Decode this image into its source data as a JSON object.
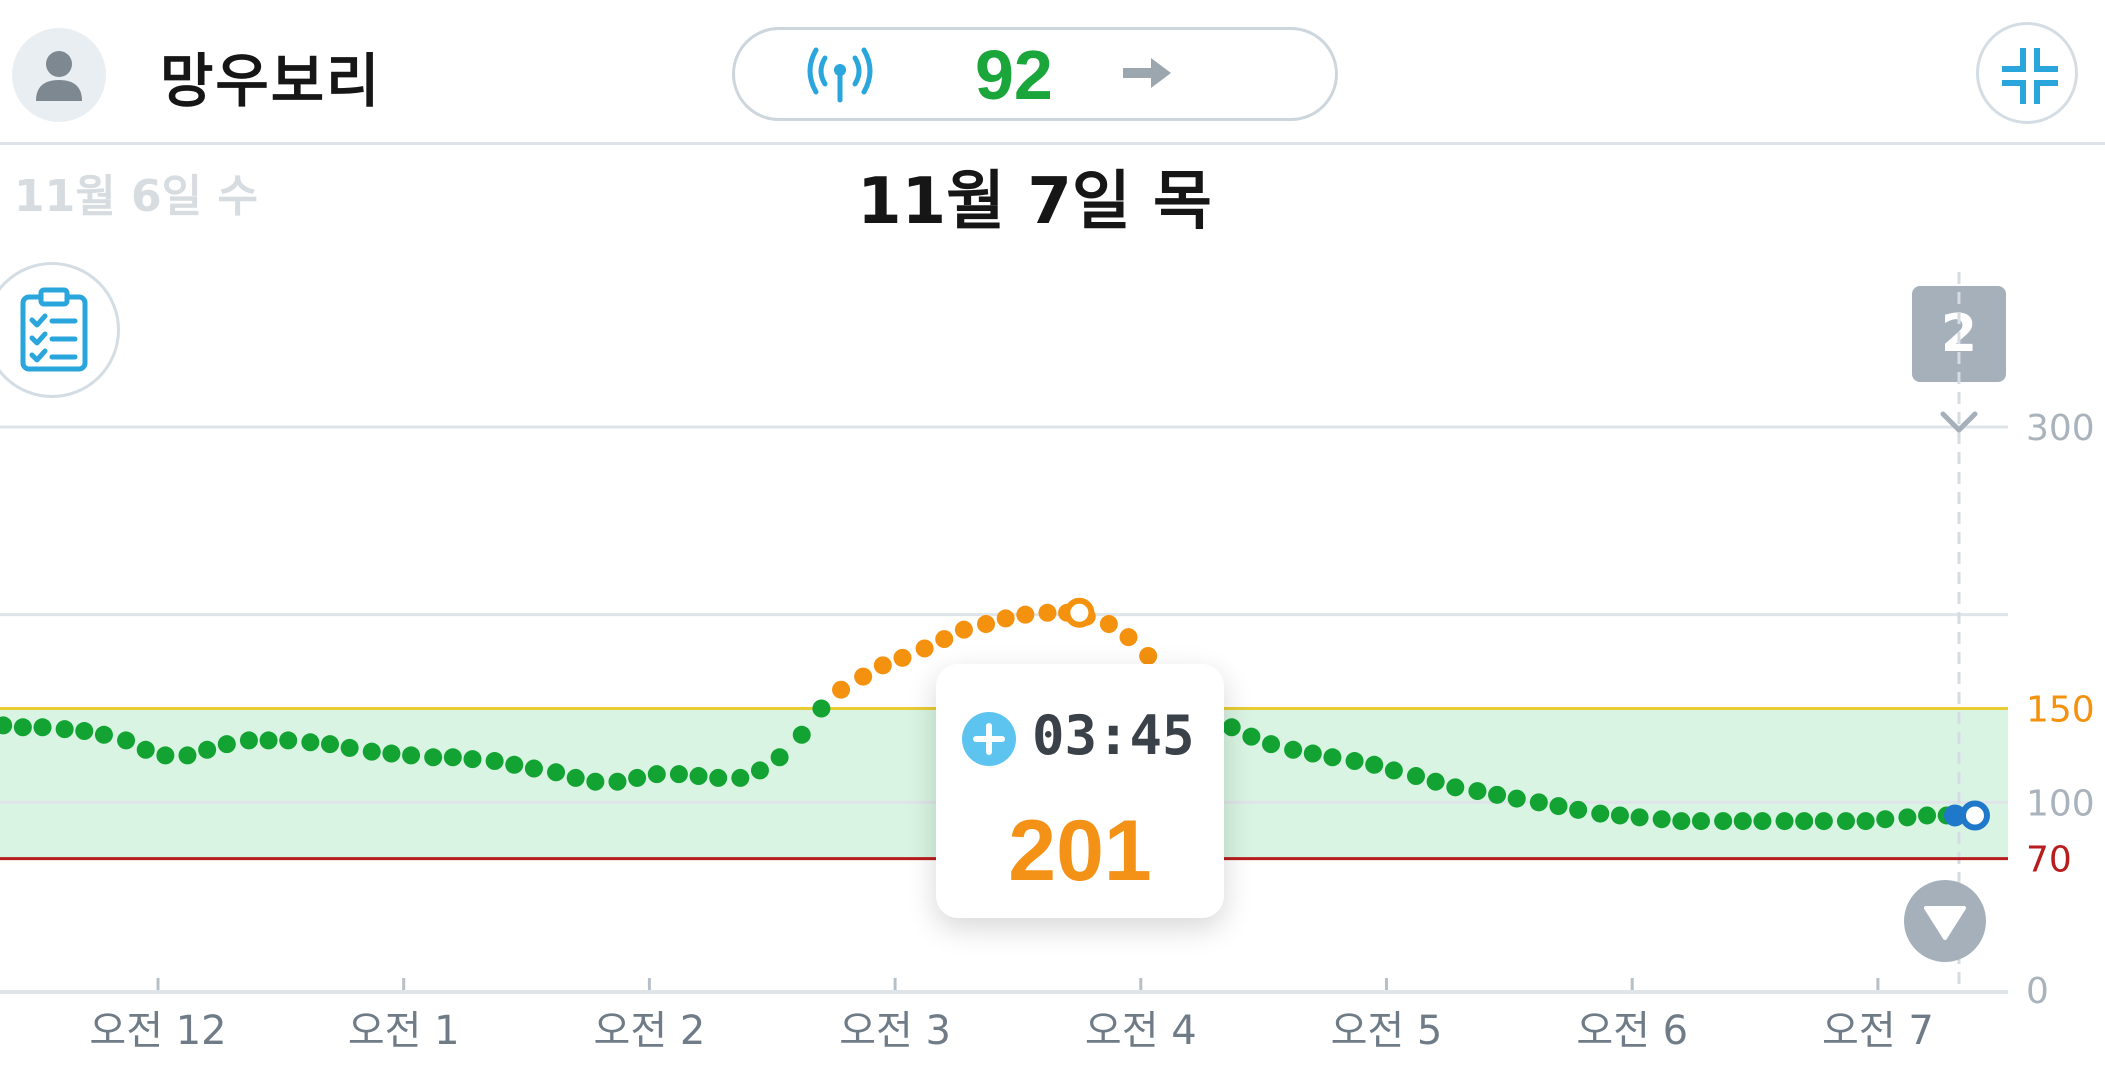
{
  "header": {
    "user_name": "망우보리",
    "current_value": "92",
    "trend": "arrow-right",
    "icons": [
      "person-icon",
      "signal-icon",
      "arrow-right-icon",
      "collapse-icon"
    ]
  },
  "date_nav": {
    "previous_day": "11월 6일 수",
    "current_day": "11월 7일 목"
  },
  "log_button": {
    "icon": "clipboard-checklist-icon"
  },
  "event_count": "2",
  "tooltip": {
    "time": "03:45",
    "value": "201"
  },
  "colors": {
    "in_range": "#12a332",
    "high": "#f4920f",
    "current": "#1f78c9",
    "target_band": "#d9f4e2",
    "high_line": "#e8cc33",
    "low_line": "#b81d1d"
  },
  "chart_data": {
    "type": "scatter",
    "y_ticks": [
      {
        "value": 0,
        "label": "0",
        "color": "#aab3bc"
      },
      {
        "value": 100,
        "label": "100",
        "color": "#aab3bc"
      },
      {
        "value": 150,
        "label": "150",
        "color": "#f4920f"
      },
      {
        "value": 300,
        "label": "300",
        "color": "#aab3bc"
      }
    ],
    "low_threshold": {
      "value": 70,
      "label": "70",
      "color": "#b81d1d"
    },
    "high_threshold": 150,
    "target_range": [
      70,
      150
    ],
    "gridlines": [
      0,
      100,
      200,
      300
    ],
    "ylim": [
      0,
      300
    ],
    "x_axis": {
      "hours": [
        0,
        1,
        2,
        3,
        4,
        5,
        6,
        7
      ],
      "labels": [
        "오전 12",
        "오전 1",
        "오전 2",
        "오전 3",
        "오전 4",
        "오전 5",
        "오전 6",
        "오전 7"
      ],
      "range": [
        -0.65,
        7.55
      ]
    },
    "now_hour": 7.33,
    "selected": {
      "hour": 3.75,
      "value": 201
    },
    "series": [
      {
        "x": [
          -0.63,
          -0.55,
          -0.47,
          -0.38,
          -0.3,
          -0.22,
          -0.13,
          -0.05,
          0.03,
          0.12,
          0.2,
          0.28,
          0.37,
          0.45,
          0.53,
          0.62,
          0.7,
          0.78,
          0.87,
          0.95,
          1.03,
          1.12,
          1.2,
          1.28,
          1.37,
          1.45,
          1.53,
          1.62,
          1.7,
          1.78,
          1.87,
          1.95,
          2.03,
          2.12,
          2.2,
          2.28,
          2.37,
          2.45,
          2.53,
          2.62,
          2.7,
          2.78,
          2.87,
          2.95,
          3.03,
          3.12,
          3.2,
          3.28,
          3.37,
          3.45,
          3.53,
          3.62,
          3.7,
          3.75,
          3.78,
          3.87,
          3.95,
          4.03,
          4.12,
          4.2,
          4.28,
          4.37,
          4.45,
          4.53,
          4.62,
          4.7,
          4.78,
          4.87,
          4.95,
          5.03,
          5.12,
          5.2,
          5.28,
          5.37,
          5.45,
          5.53,
          5.62,
          5.7,
          5.78,
          5.87,
          5.95,
          6.03,
          6.12,
          6.2,
          6.28,
          6.37,
          6.45,
          6.53,
          6.62,
          6.7,
          6.78,
          6.87,
          6.95,
          7.03,
          7.12,
          7.2,
          7.28
        ],
        "y": [
          141,
          140,
          140,
          139,
          138,
          136,
          133,
          128,
          125,
          125,
          128,
          131,
          133,
          133,
          133,
          132,
          131,
          129,
          127,
          126,
          125,
          124,
          124,
          123,
          122,
          120,
          118,
          116,
          113,
          111,
          111,
          113,
          115,
          115,
          114,
          113,
          113,
          117,
          124,
          136,
          150,
          160,
          167,
          173,
          177,
          182,
          187,
          192,
          195,
          198,
          200,
          201,
          201,
          201,
          199,
          195,
          188,
          178,
          165,
          152,
          145,
          140,
          135,
          131,
          128,
          126,
          124,
          122,
          120,
          117,
          114,
          111,
          108,
          106,
          104,
          102,
          100,
          98,
          96,
          94,
          93,
          92,
          91,
          90,
          90,
          90,
          90,
          90,
          90,
          90,
          90,
          90,
          90,
          91,
          92,
          93,
          93
        ]
      }
    ]
  }
}
